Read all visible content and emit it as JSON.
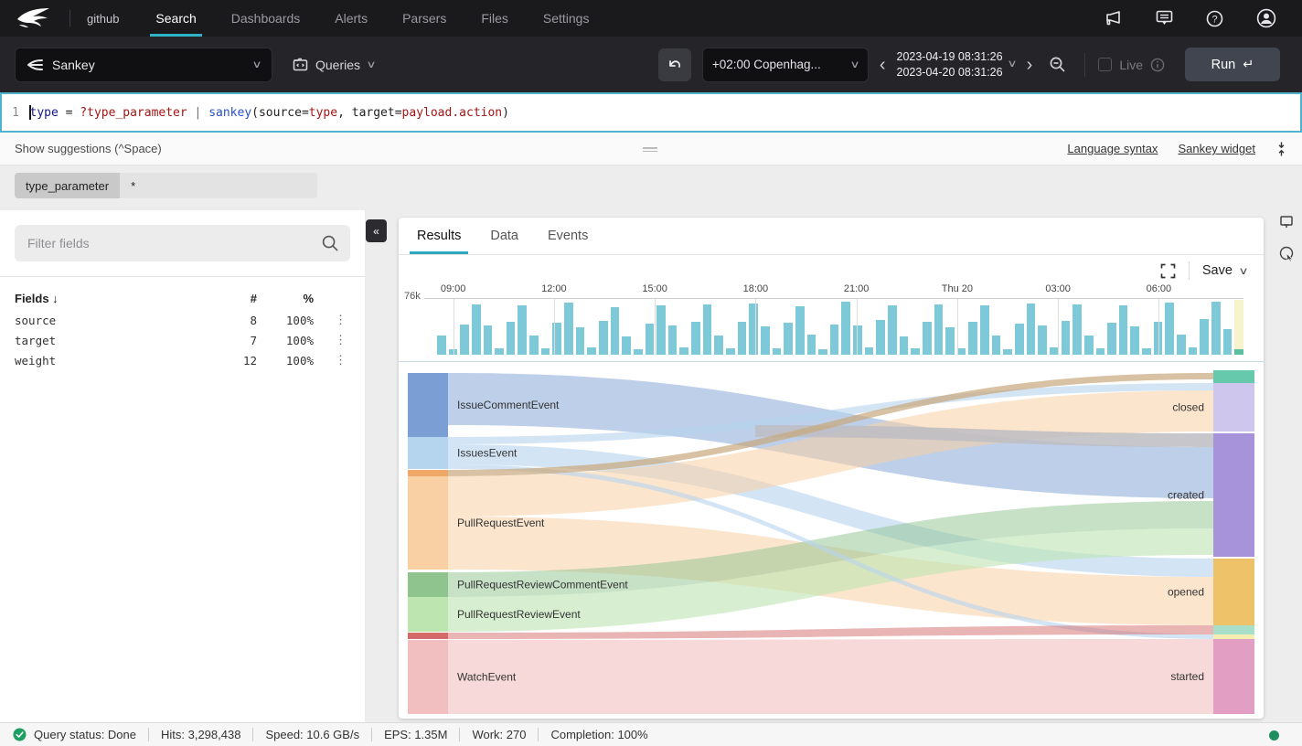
{
  "topnav": {
    "repo": "github",
    "items": [
      {
        "label": "Search",
        "active": true
      },
      {
        "label": "Dashboards",
        "active": false
      },
      {
        "label": "Alerts",
        "active": false
      },
      {
        "label": "Parsers",
        "active": false
      },
      {
        "label": "Files",
        "active": false
      },
      {
        "label": "Settings",
        "active": false
      }
    ]
  },
  "toolbar": {
    "view_selector_label": "Sankey",
    "queries_label": "Queries",
    "timezone_label": "+02:00 Copenhag...",
    "time_start": "2023-04-19 08:31:26",
    "time_end": "2023-04-20 08:31:26",
    "live_label": "Live",
    "run_label": "Run",
    "run_symbol": "↵"
  },
  "editor": {
    "line_number": "1",
    "tokens": [
      {
        "text": "type",
        "color": "#15158f"
      },
      {
        "text": " = ",
        "color": "#222222"
      },
      {
        "text": "?type_parameter",
        "color": "#a31515"
      },
      {
        "text": " | ",
        "color": "#707070"
      },
      {
        "text": "sankey",
        "color": "#2b4fd0"
      },
      {
        "text": "(source=",
        "color": "#222222"
      },
      {
        "text": "type",
        "color": "#a31515"
      },
      {
        "text": ", target=",
        "color": "#222222"
      },
      {
        "text": "payload.action",
        "color": "#a31515"
      },
      {
        "text": ")",
        "color": "#222222"
      }
    ]
  },
  "suggestions_bar": {
    "hint": "Show suggestions (^Space)",
    "links": [
      "Language syntax",
      "Sankey widget"
    ]
  },
  "parameter": {
    "name": "type_parameter",
    "value": "*"
  },
  "fields_panel": {
    "filter_placeholder": "Filter fields",
    "columns": {
      "name": "Fields",
      "sort_arrow": "↓",
      "count": "#",
      "percent": "%"
    },
    "rows": [
      {
        "name": "source",
        "count": "8",
        "percent": "100%"
      },
      {
        "name": "target",
        "count": "7",
        "percent": "100%"
      },
      {
        "name": "weight",
        "count": "12",
        "percent": "100%"
      }
    ]
  },
  "results_panel": {
    "tabs": [
      {
        "label": "Results",
        "active": true
      },
      {
        "label": "Data",
        "active": false
      },
      {
        "label": "Events",
        "active": false
      }
    ],
    "save_label": "Save"
  },
  "statusbar": {
    "items": [
      "Query status: Done",
      "Hits: 3,298,438",
      "Speed: 10.6 GB/s",
      "EPS: 1.35M",
      "Work: 270",
      "Completion: 100%"
    ]
  },
  "chart_data": [
    {
      "type": "bar",
      "title": "Event count histogram over time",
      "ylabel_tick": "76k",
      "ylim": [
        0,
        76000
      ],
      "grid": "vertical",
      "bar_color": "#7dc9d8",
      "x_ticks": [
        {
          "label": "09:00",
          "pos": 0.02
        },
        {
          "label": "12:00",
          "pos": 0.145
        },
        {
          "label": "15:00",
          "pos": 0.27
        },
        {
          "label": "18:00",
          "pos": 0.395
        },
        {
          "label": "21:00",
          "pos": 0.52
        },
        {
          "label": "Thu 20",
          "pos": 0.645
        },
        {
          "label": "03:00",
          "pos": 0.77
        },
        {
          "label": "06:00",
          "pos": 0.895
        }
      ],
      "values_k": [
        26,
        8,
        42,
        70,
        40,
        9,
        46,
        68,
        27,
        9,
        44,
        72,
        38,
        10,
        47,
        66,
        25,
        8,
        43,
        69,
        41,
        10,
        45,
        70,
        26,
        9,
        46,
        71,
        39,
        9,
        44,
        67,
        28,
        8,
        42,
        73,
        40,
        10,
        48,
        69,
        25,
        9,
        45,
        70,
        38,
        9,
        46,
        68,
        27,
        8,
        43,
        71,
        41,
        10,
        47,
        70,
        26,
        9,
        44,
        69,
        39,
        9,
        45,
        72,
        28,
        10,
        50,
        74,
        36
      ],
      "partial_last_bucket": {
        "value_k": 8,
        "column_color": "#f7f3cc",
        "bar_color": "#5cbf9f"
      }
    },
    {
      "type": "sankey",
      "title": "sankey(source=type, target=payload.action)",
      "source_nodes": [
        {
          "label": "IssueCommentEvent",
          "color": "#7b9fd4",
          "y": [
            3,
            73
          ]
        },
        {
          "label": "IssuesEvent",
          "color": "#b5d4ee",
          "y": [
            73,
            108
          ]
        },
        {
          "label": "",
          "color": "#f0a868",
          "y": [
            109,
            116
          ]
        },
        {
          "label": "PullRequestEvent",
          "color": "#f9cfa4",
          "y": [
            116,
            218
          ]
        },
        {
          "label": "PullRequestReviewCommentEvent",
          "color": "#8fc48f",
          "y": [
            221,
            248
          ]
        },
        {
          "label": "PullRequestReviewEvent",
          "color": "#bce5b0",
          "y": [
            248,
            286
          ]
        },
        {
          "label": "",
          "color": "#d46a6a",
          "y": [
            287,
            294
          ]
        },
        {
          "label": "WatchEvent",
          "color": "#f1bfbf",
          "y": [
            295,
            376
          ]
        }
      ],
      "target_nodes": [
        {
          "label": "",
          "color": "#66c9ab",
          "y": [
            0,
            14
          ]
        },
        {
          "label": "closed",
          "color": "#cfc6ee",
          "y": [
            14,
            67
          ]
        },
        {
          "label": "created",
          "color": "#a793da",
          "y": [
            69,
            204
          ]
        },
        {
          "label": "opened",
          "color": "#eec269",
          "y": [
            206,
            279
          ]
        },
        {
          "label": "",
          "color": "#a8dfc8",
          "y": [
            279,
            289
          ]
        },
        {
          "label": "",
          "color": "#f4eeb2",
          "y": [
            289,
            294
          ]
        },
        {
          "label": "started",
          "color": "#e29fc3",
          "y": [
            294,
            376
          ]
        }
      ],
      "links": [
        {
          "source": "IssueCommentEvent",
          "target": "created",
          "s": [
            3,
            60
          ],
          "t": [
            84,
            140
          ],
          "color": "#7b9fd4",
          "opacity": 0.5
        },
        {
          "source": "IssuesEvent",
          "target": "closed",
          "s": [
            73,
            81
          ],
          "t": [
            14,
            22
          ],
          "color": "#b5d4ee",
          "opacity": 0.6
        },
        {
          "source": "IssuesEvent",
          "target": "opened",
          "s": [
            81,
            103
          ],
          "t": [
            206,
            226
          ],
          "color": "#b5d4ee",
          "opacity": 0.6
        },
        {
          "source": "PullRequestEvent",
          "target": "closed",
          "s": [
            116,
            160
          ],
          "t": [
            22,
            67
          ],
          "color": "#f9cfa4",
          "opacity": 0.55
        },
        {
          "source": "PullRequestEvent",
          "target": "opened",
          "s": [
            160,
            218
          ],
          "t": [
            226,
            279
          ],
          "color": "#f9cfa4",
          "opacity": 0.55
        },
        {
          "source": "PullRequestReviewCommentEvent",
          "target": "created",
          "s": [
            221,
            248
          ],
          "t": [
            143,
            173
          ],
          "color": "#8fc48f",
          "opacity": 0.5
        },
        {
          "source": "PullRequestReviewEvent",
          "target": "created",
          "s": [
            248,
            286
          ],
          "t": [
            173,
            202
          ],
          "color": "#bce5b0",
          "opacity": 0.6
        },
        {
          "source": "WatchEvent",
          "target": "started",
          "s": [
            295,
            376
          ],
          "t": [
            294,
            376
          ],
          "color": "#f1bfbf",
          "opacity": 0.6
        },
        {
          "source": "IssueCommentEvent",
          "target": "created",
          "s": [
            60,
            73
          ],
          "t": [
            69,
            84
          ],
          "color": "#bdbdc2",
          "opacity": 0.85,
          "sx": 380
        },
        {
          "source": "IssuesEvent",
          "target": "sliver-yellow",
          "s": [
            103,
            108
          ],
          "t": [
            289,
            294
          ],
          "color": "#b5d4ee",
          "opacity": 0.6
        },
        {
          "source": "sliver-red",
          "target": "sliver-mint",
          "s": [
            287,
            294
          ],
          "t": [
            279,
            289
          ],
          "color": "#d46a6a",
          "opacity": 0.5
        },
        {
          "source": "sliver-orange",
          "target": "sliver-teal",
          "s": [
            109,
            116
          ],
          "t": [
            3,
            10
          ],
          "color": "#c9a87c",
          "opacity": 0.7
        }
      ]
    }
  ]
}
